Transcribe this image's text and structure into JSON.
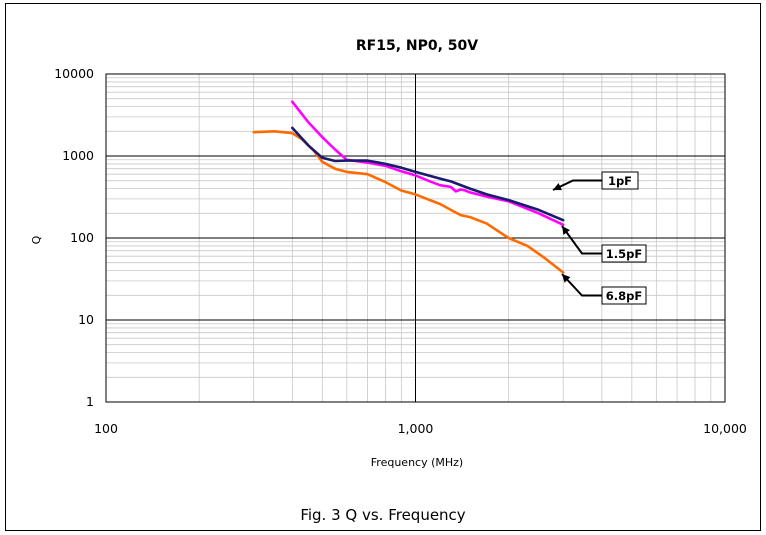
{
  "chart_data": {
    "type": "line",
    "title": "RF15, NP0, 50V",
    "xlabel": "Frequency (MHz)",
    "ylabel": "Q",
    "x_scale": "log",
    "y_scale": "log",
    "xlim": [
      100,
      10000
    ],
    "ylim": [
      1,
      10000
    ],
    "x_ticks": [
      100,
      1000,
      10000
    ],
    "x_tick_labels": [
      "100",
      "1,000",
      "10,000"
    ],
    "y_ticks": [
      1,
      10,
      100,
      1000,
      10000
    ],
    "y_tick_labels": [
      "1",
      "10",
      "100",
      "1000",
      "10000"
    ],
    "grid": true,
    "legend": "callouts",
    "series": [
      {
        "name": "1pF",
        "color": "#1a1a6e",
        "points": [
          [
            400,
            2200
          ],
          [
            450,
            1350
          ],
          [
            500,
            950
          ],
          [
            550,
            870
          ],
          [
            600,
            880
          ],
          [
            700,
            880
          ],
          [
            800,
            800
          ],
          [
            900,
            720
          ],
          [
            1000,
            640
          ],
          [
            1200,
            530
          ],
          [
            1300,
            490
          ],
          [
            1500,
            400
          ],
          [
            1700,
            340
          ],
          [
            2000,
            290
          ],
          [
            2500,
            220
          ],
          [
            3000,
            165
          ]
        ]
      },
      {
        "name": "1.5pF",
        "color": "#ff00ff",
        "points": [
          [
            400,
            4600
          ],
          [
            450,
            2600
          ],
          [
            500,
            1700
          ],
          [
            550,
            1200
          ],
          [
            600,
            900
          ],
          [
            700,
            830
          ],
          [
            800,
            760
          ],
          [
            900,
            650
          ],
          [
            1000,
            580
          ],
          [
            1100,
            500
          ],
          [
            1200,
            440
          ],
          [
            1300,
            420
          ],
          [
            1350,
            370
          ],
          [
            1400,
            390
          ],
          [
            1450,
            380
          ],
          [
            1500,
            360
          ],
          [
            1700,
            320
          ],
          [
            2000,
            280
          ],
          [
            2500,
            200
          ],
          [
            3000,
            145
          ]
        ]
      },
      {
        "name": "6.8pF",
        "color": "#ff6a00",
        "points": [
          [
            300,
            1950
          ],
          [
            350,
            2000
          ],
          [
            400,
            1900
          ],
          [
            430,
            1600
          ],
          [
            470,
            1150
          ],
          [
            500,
            850
          ],
          [
            550,
            700
          ],
          [
            600,
            640
          ],
          [
            700,
            600
          ],
          [
            800,
            480
          ],
          [
            900,
            380
          ],
          [
            1000,
            340
          ],
          [
            1200,
            260
          ],
          [
            1400,
            190
          ],
          [
            1500,
            180
          ],
          [
            1700,
            150
          ],
          [
            1800,
            130
          ],
          [
            2000,
            100
          ],
          [
            2300,
            80
          ],
          [
            2600,
            58
          ],
          [
            3000,
            38
          ]
        ]
      }
    ]
  },
  "caption": "Fig. 3 Q vs. Frequency"
}
